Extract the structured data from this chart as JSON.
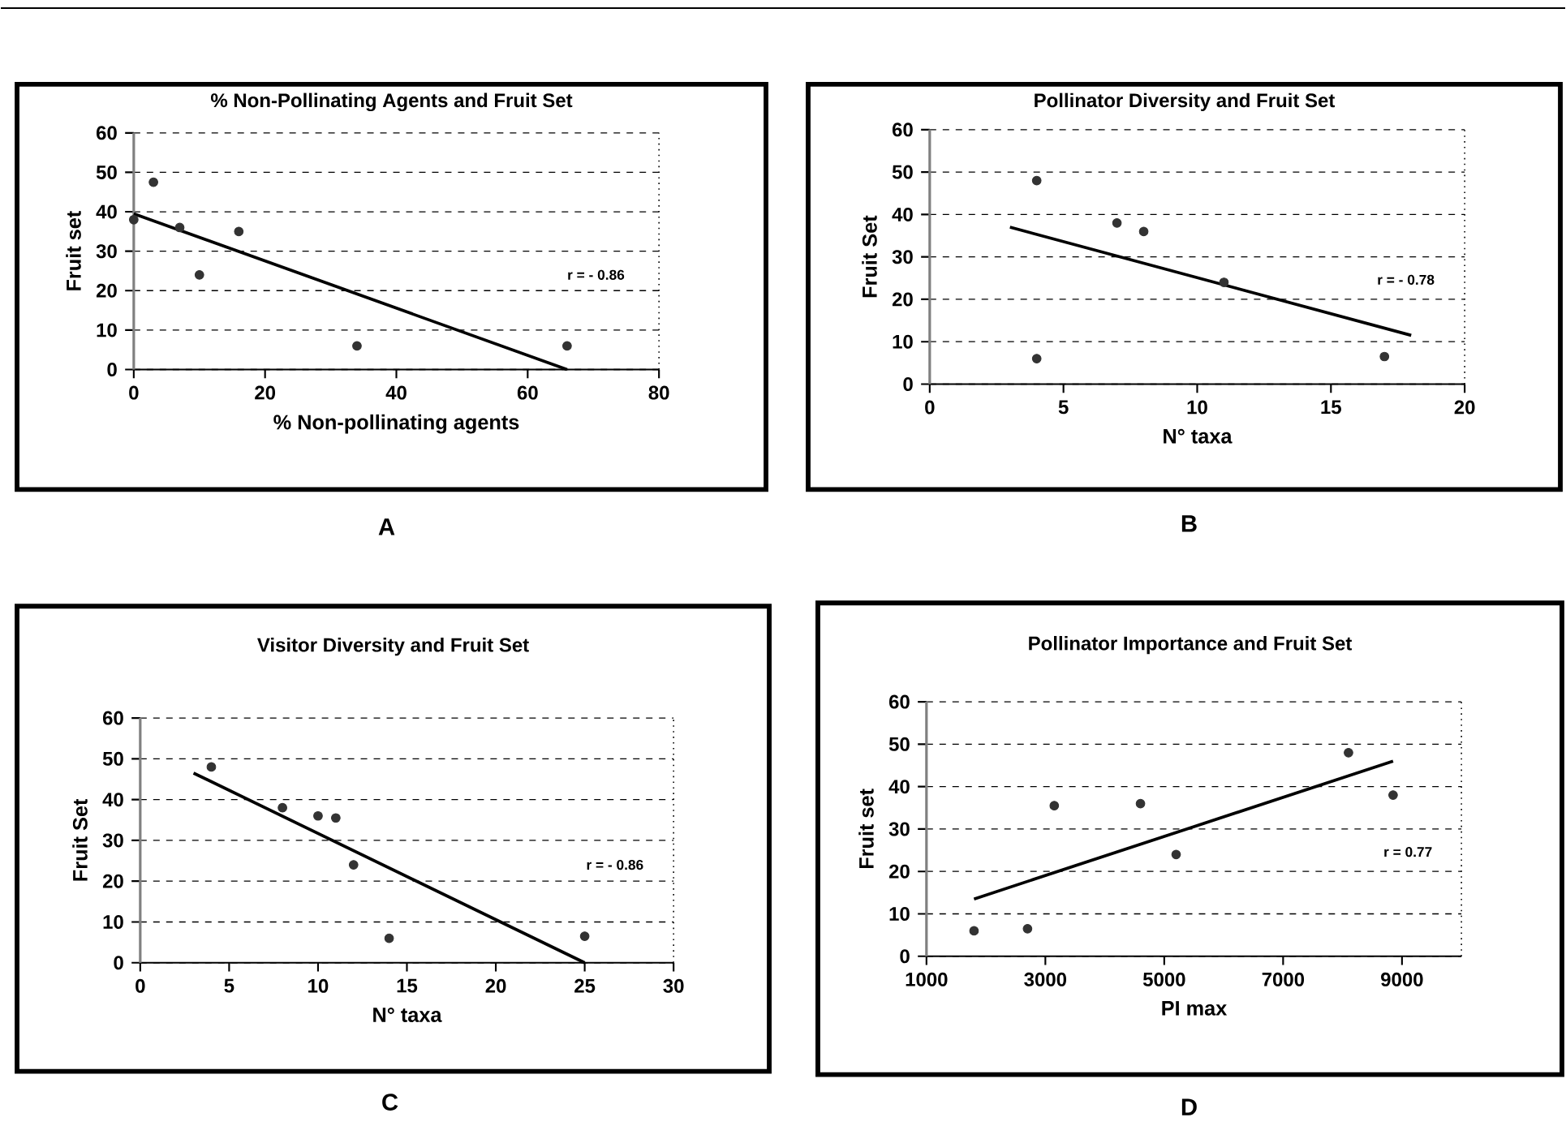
{
  "chart_data": [
    {
      "type": "scatter",
      "title": "% Non-Pollinating Agents and Fruit Set",
      "xlabel": "% Non-pollinating agents",
      "ylabel": "Fruit set",
      "annotations": [
        "r = - 0.86",
        "A"
      ],
      "xlim": [
        0,
        80
      ],
      "ylim": [
        0,
        60
      ],
      "xticks": [
        0,
        20,
        40,
        60,
        80
      ],
      "yticks": [
        0,
        10,
        20,
        30,
        40,
        50,
        60
      ],
      "grid": "y",
      "series": [
        {
          "type": "scatter",
          "marker": "circle",
          "color": "#333333",
          "x": [
            0,
            3,
            7,
            10,
            16,
            34,
            66
          ],
          "values": [
            38,
            47.5,
            36,
            24,
            35,
            6,
            6
          ]
        },
        {
          "type": "line",
          "marker": "none",
          "color": "#000000",
          "x": [
            0,
            66
          ],
          "values": [
            39.5,
            0
          ]
        }
      ]
    },
    {
      "type": "scatter",
      "title": "Pollinator Diversity and Fruit Set",
      "xlabel": "N° taxa",
      "ylabel": "Fruit Set",
      "annotations": [
        "r = - 0.78",
        "B"
      ],
      "xlim": [
        0,
        20
      ],
      "ylim": [
        0,
        60
      ],
      "xticks": [
        0,
        5,
        10,
        15,
        20
      ],
      "yticks": [
        0,
        10,
        20,
        30,
        40,
        50,
        60
      ],
      "grid": "y",
      "series": [
        {
          "type": "scatter",
          "marker": "circle",
          "color": "#333333",
          "x": [
            4,
            4,
            7,
            8,
            11,
            17
          ],
          "values": [
            48,
            6,
            38,
            36,
            24,
            6.5
          ]
        },
        {
          "type": "line",
          "marker": "none",
          "color": "#000000",
          "x": [
            3,
            18
          ],
          "values": [
            37,
            11.5
          ]
        }
      ]
    },
    {
      "type": "scatter",
      "title": "Visitor Diversity and Fruit Set",
      "xlabel": "N° taxa",
      "ylabel": "Fruit Set",
      "annotations": [
        "r = - 0.86",
        "C"
      ],
      "xlim": [
        0,
        30
      ],
      "ylim": [
        0,
        60
      ],
      "xticks": [
        0,
        5,
        10,
        15,
        20,
        25,
        30
      ],
      "yticks": [
        0,
        10,
        20,
        30,
        40,
        50,
        60
      ],
      "grid": "y",
      "series": [
        {
          "type": "scatter",
          "marker": "circle",
          "color": "#333333",
          "x": [
            4,
            8,
            10,
            11,
            12,
            14,
            25
          ],
          "values": [
            48,
            38,
            36,
            35.5,
            24,
            6,
            6.5
          ]
        },
        {
          "type": "line",
          "marker": "none",
          "color": "#000000",
          "x": [
            3,
            25
          ],
          "values": [
            46.5,
            0
          ]
        }
      ]
    },
    {
      "type": "scatter",
      "title": "Pollinator Importance and Fruit Set",
      "xlabel": "PI max",
      "ylabel": "Fruit set",
      "annotations": [
        "r = 0.77",
        "D"
      ],
      "xlim": [
        1000,
        10000
      ],
      "ylim": [
        0,
        60
      ],
      "xticks": [
        1000,
        3000,
        5000,
        7000,
        9000
      ],
      "yticks": [
        0,
        10,
        20,
        30,
        40,
        50,
        60
      ],
      "grid": "y",
      "series": [
        {
          "type": "scatter",
          "marker": "circle",
          "color": "#333333",
          "x": [
            1800,
            2700,
            3150,
            4600,
            5200,
            8100,
            8850
          ],
          "values": [
            6,
            6.5,
            35.5,
            36,
            24,
            48,
            38
          ]
        },
        {
          "type": "line",
          "marker": "none",
          "color": "#000000",
          "x": [
            1800,
            8850
          ],
          "values": [
            13.5,
            46
          ]
        }
      ]
    }
  ]
}
